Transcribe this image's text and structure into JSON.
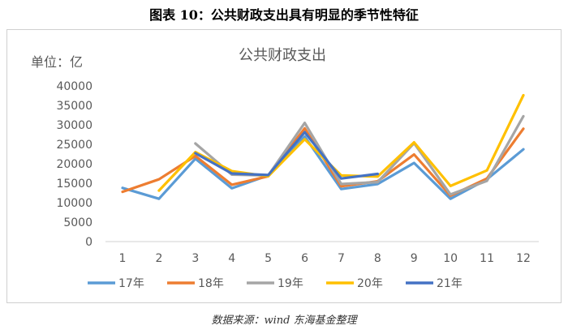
{
  "figure_title": "图表 10：公共财政支出具有明显的季节性特征",
  "source_note": "数据来源：wind  东海基金整理",
  "chart_data": {
    "type": "line",
    "title": "公共财政支出",
    "unit_label": "单位：亿",
    "xlabel": "",
    "ylabel": "",
    "x": [
      1,
      2,
      3,
      4,
      5,
      6,
      7,
      8,
      9,
      10,
      11,
      12
    ],
    "ylim": [
      0,
      40000
    ],
    "yticks": [
      0,
      5000,
      10000,
      15000,
      20000,
      25000,
      30000,
      35000,
      40000
    ],
    "grid": false,
    "legend_position": "bottom",
    "series": [
      {
        "name": "17年",
        "color": "#5b9bd5",
        "values": [
          13800,
          11000,
          21300,
          13700,
          17000,
          27000,
          13500,
          14800,
          20200,
          11000,
          16000,
          23700
        ]
      },
      {
        "name": "18年",
        "color": "#ed7d31",
        "values": [
          12800,
          16000,
          22000,
          14600,
          16800,
          29100,
          14200,
          15500,
          22400,
          11800,
          16200,
          29000
        ]
      },
      {
        "name": "19年",
        "color": "#a5a5a5",
        "values": [
          null,
          null,
          25200,
          17200,
          17000,
          30500,
          14800,
          15300,
          25300,
          12100,
          15600,
          32200
        ]
      },
      {
        "name": "20年",
        "color": "#ffc000",
        "values": [
          null,
          13100,
          23000,
          18100,
          16800,
          26300,
          17000,
          16700,
          25500,
          14300,
          18300,
          37600
        ]
      },
      {
        "name": "21年",
        "color": "#4472c4",
        "values": [
          null,
          null,
          22700,
          17500,
          17100,
          28100,
          16200,
          17400,
          null,
          null,
          null,
          null
        ]
      }
    ]
  }
}
